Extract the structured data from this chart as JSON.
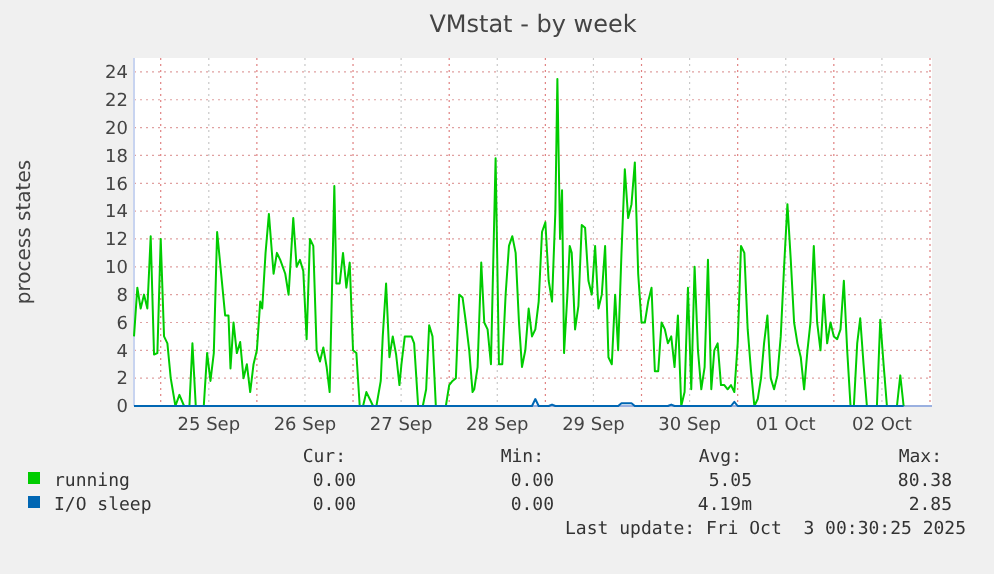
{
  "chart_data": {
    "type": "line",
    "title": "VMstat - by week",
    "ylabel": "process states",
    "xlim": [
      "2025-09-24T17:20",
      "2025-10-03T00:30"
    ],
    "xticks": [
      {
        "value": "2025-09-25T00:00",
        "label": null
      },
      {
        "value": "2025-09-25T12:00",
        "label": "25 Sep"
      },
      {
        "value": "2025-09-26T00:00",
        "label": null
      },
      {
        "value": "2025-09-26T12:00",
        "label": "26 Sep"
      },
      {
        "value": "2025-09-27T00:00",
        "label": null
      },
      {
        "value": "2025-09-27T12:00",
        "label": "27 Sep"
      },
      {
        "value": "2025-09-28T00:00",
        "label": null
      },
      {
        "value": "2025-09-28T12:00",
        "label": "28 Sep"
      },
      {
        "value": "2025-09-29T00:00",
        "label": null
      },
      {
        "value": "2025-09-29T12:00",
        "label": "29 Sep"
      },
      {
        "value": "2025-09-30T00:00",
        "label": null
      },
      {
        "value": "2025-09-30T12:00",
        "label": "30 Sep"
      },
      {
        "value": "2025-10-01T00:00",
        "label": null
      },
      {
        "value": "2025-10-01T12:00",
        "label": "01 Oct"
      },
      {
        "value": "2025-10-02T00:00",
        "label": null
      },
      {
        "value": "2025-10-02T12:00",
        "label": "02 Oct"
      },
      {
        "value": "2025-10-03T00:00",
        "label": null
      }
    ],
    "ylim": [
      0,
      25
    ],
    "yticks": [
      0,
      2,
      4,
      6,
      8,
      10,
      12,
      14,
      16,
      18,
      20,
      22,
      24
    ],
    "grid": true,
    "legend": "bottom",
    "series": [
      {
        "name": "running",
        "color": "#00cc00",
        "x": [
          "2025-09-24T17:20",
          "2025-09-24T18:10",
          "2025-09-24T19:00",
          "2025-09-24T19:50",
          "2025-09-24T20:40",
          "2025-09-24T21:30",
          "2025-09-24T22:20",
          "2025-09-24T23:10",
          "2025-09-25T00:00",
          "2025-09-25T00:50",
          "2025-09-25T01:40",
          "2025-09-25T02:30",
          "2025-09-25T03:40",
          "2025-09-25T04:40",
          "2025-09-25T05:50",
          "2025-09-25T07:10",
          "2025-09-25T07:55",
          "2025-09-25T08:45",
          "2025-09-25T10:45",
          "2025-09-25T11:35",
          "2025-09-25T12:25",
          "2025-09-25T13:15",
          "2025-09-25T14:05",
          "2025-09-25T15:15",
          "2025-09-25T16:05",
          "2025-09-25T16:55",
          "2025-09-25T17:25",
          "2025-09-25T18:10",
          "2025-09-25T19:00",
          "2025-09-25T19:50",
          "2025-09-25T20:40",
          "2025-09-25T21:30",
          "2025-09-25T22:20",
          "2025-09-25T23:10",
          "2025-09-26T00:00",
          "2025-09-26T00:50",
          "2025-09-26T01:20",
          "2025-09-26T02:10",
          "2025-09-26T03:00",
          "2025-09-26T04:10",
          "2025-09-26T05:00",
          "2025-09-26T05:50",
          "2025-09-26T07:05",
          "2025-09-26T07:55",
          "2025-09-26T09:05",
          "2025-09-26T09:55",
          "2025-09-26T10:45",
          "2025-09-26T11:35",
          "2025-09-26T12:25",
          "2025-09-26T13:15",
          "2025-09-26T14:05",
          "2025-09-26T14:55",
          "2025-09-26T15:45",
          "2025-09-26T16:35",
          "2025-09-26T17:25",
          "2025-09-26T18:10",
          "2025-09-26T19:20",
          "2025-09-26T19:50",
          "2025-09-26T20:40",
          "2025-09-26T21:30",
          "2025-09-26T22:20",
          "2025-09-26T23:10",
          "2025-09-27T00:00",
          "2025-09-27T00:50",
          "2025-09-27T01:40",
          "2025-09-27T02:30",
          "2025-09-27T03:20",
          "2025-09-27T04:10",
          "2025-09-27T05:00",
          "2025-09-27T05:50",
          "2025-09-27T06:55",
          "2025-09-27T07:25",
          "2025-09-27T08:15",
          "2025-09-27T09:05",
          "2025-09-27T09:55",
          "2025-09-27T10:45",
          "2025-09-27T11:35",
          "2025-09-27T12:05",
          "2025-09-27T12:55",
          "2025-09-27T14:35",
          "2025-09-27T15:15",
          "2025-09-27T16:15",
          "2025-09-27T17:25",
          "2025-09-27T18:15",
          "2025-09-27T19:00",
          "2025-09-27T19:50",
          "2025-09-27T20:40",
          "2025-09-27T22:20",
          "2025-09-27T23:10",
          "2025-09-28T00:00",
          "2025-09-28T00:50",
          "2025-09-28T01:40",
          "2025-09-28T02:30",
          "2025-09-28T03:20",
          "2025-09-28T04:10",
          "2025-09-28T05:00",
          "2025-09-28T05:50",
          "2025-09-28T06:15",
          "2025-09-28T07:05",
          "2025-09-28T08:00",
          "2025-09-28T08:45",
          "2025-09-28T09:35",
          "2025-09-28T10:25",
          "2025-09-28T11:35",
          "2025-09-28T12:25",
          "2025-09-28T13:15",
          "2025-09-28T14:05",
          "2025-09-28T14:55",
          "2025-09-28T15:45",
          "2025-09-28T16:35",
          "2025-09-28T17:25",
          "2025-09-28T18:10",
          "2025-09-28T19:00",
          "2025-09-28T19:50",
          "2025-09-28T20:40",
          "2025-09-28T21:30",
          "2025-09-28T22:20",
          "2025-09-28T23:10",
          "2025-09-29T00:00",
          "2025-09-29T00:50",
          "2025-09-29T01:40",
          "2025-09-29T02:30",
          "2025-09-29T03:00",
          "2025-09-29T03:40",
          "2025-09-29T04:10",
          "2025-09-29T04:40",
          "2025-09-29T05:30",
          "2025-09-29T06:05",
          "2025-09-29T06:35",
          "2025-09-29T07:25",
          "2025-09-29T08:15",
          "2025-09-29T09:05",
          "2025-09-29T09:55",
          "2025-09-29T10:45",
          "2025-09-29T11:35",
          "2025-09-29T12:25",
          "2025-09-29T13:15",
          "2025-09-29T14:05",
          "2025-09-29T14:55",
          "2025-09-29T15:45",
          "2025-09-29T16:35",
          "2025-09-29T17:25",
          "2025-09-29T18:10",
          "2025-09-29T19:00",
          "2025-09-29T19:50",
          "2025-09-29T20:40",
          "2025-09-29T21:30",
          "2025-09-29T22:20",
          "2025-09-29T23:10",
          "2025-09-30T00:00",
          "2025-09-30T00:50",
          "2025-09-30T01:40",
          "2025-09-30T02:30",
          "2025-09-30T03:20",
          "2025-09-30T04:10",
          "2025-09-30T05:00",
          "2025-09-30T05:50",
          "2025-09-30T06:35",
          "2025-09-30T07:25",
          "2025-09-30T08:15",
          "2025-09-30T09:05",
          "2025-09-30T09:55",
          "2025-09-30T10:45",
          "2025-09-30T11:35",
          "2025-09-30T12:25",
          "2025-09-30T13:15",
          "2025-09-30T14:05",
          "2025-09-30T14:55",
          "2025-09-30T15:45",
          "2025-09-30T16:35",
          "2025-09-30T17:25",
          "2025-09-30T18:10",
          "2025-09-30T19:00",
          "2025-09-30T19:50",
          "2025-09-30T20:40",
          "2025-09-30T21:30",
          "2025-09-30T22:20",
          "2025-09-30T23:10",
          "2025-10-01T00:00",
          "2025-10-01T00:50",
          "2025-10-01T01:40",
          "2025-10-01T02:30",
          "2025-10-01T03:20",
          "2025-10-01T04:10",
          "2025-10-01T05:00",
          "2025-10-01T05:50",
          "2025-10-01T06:35",
          "2025-10-01T07:25",
          "2025-10-01T08:15",
          "2025-10-01T09:05",
          "2025-10-01T09:55",
          "2025-10-01T10:45",
          "2025-10-01T11:35",
          "2025-10-01T12:25",
          "2025-10-01T13:15",
          "2025-10-01T14:05",
          "2025-10-01T14:55",
          "2025-10-01T15:45",
          "2025-10-01T16:35",
          "2025-10-01T17:25",
          "2025-10-01T18:10",
          "2025-10-01T19:00",
          "2025-10-01T19:50",
          "2025-10-01T20:40",
          "2025-10-01T21:30",
          "2025-10-01T22:20",
          "2025-10-01T23:10",
          "2025-10-02T00:00",
          "2025-10-02T00:50",
          "2025-10-02T01:40",
          "2025-10-02T02:30",
          "2025-10-02T03:20",
          "2025-10-02T04:10",
          "2025-10-02T05:00",
          "2025-10-02T05:50",
          "2025-10-02T06:35",
          "2025-10-02T07:25",
          "2025-10-02T08:15",
          "2025-10-02T10:45",
          "2025-10-02T11:35",
          "2025-10-02T12:25",
          "2025-10-02T13:15",
          "2025-10-02T15:45",
          "2025-10-02T16:35",
          "2025-10-02T17:25"
        ],
        "values": [
          5,
          8.5,
          7,
          8,
          7,
          12.2,
          3.7,
          3.8,
          12,
          5,
          4.5,
          2,
          0,
          0.8,
          0,
          0,
          4.5,
          0,
          0,
          3.8,
          1.8,
          3.8,
          12.5,
          9,
          6.5,
          6.5,
          2.7,
          6,
          3.8,
          4.6,
          2,
          3,
          1,
          3,
          4,
          7.5,
          7,
          11,
          13.8,
          9.5,
          11,
          10.5,
          9.5,
          8,
          13.5,
          10,
          10.5,
          9.7,
          4.8,
          12,
          11.5,
          4,
          3.2,
          4.2,
          2.8,
          1,
          15.8,
          8.8,
          8.8,
          11,
          8.5,
          10.3,
          4,
          3.8,
          0,
          0,
          1,
          0.5,
          0,
          0,
          1.8,
          5,
          8.8,
          3.5,
          5,
          3.7,
          1.5,
          3,
          5,
          5,
          4.5,
          0,
          0,
          1.2,
          5.8,
          5,
          0,
          0,
          0,
          1.5,
          1.8,
          2,
          8,
          7.8,
          6,
          4,
          1,
          1.2,
          2.8,
          10.3,
          6,
          5.5,
          3,
          17.8,
          3,
          3,
          8,
          11.5,
          12.2,
          11,
          6,
          2.8,
          4,
          7,
          5,
          5.5,
          7.5,
          12.5,
          13.2,
          9,
          7.5,
          14,
          23.5,
          12,
          15.5,
          3.8,
          8,
          11.5,
          11,
          5.5,
          7.2,
          13,
          12.8,
          9,
          8,
          11.5,
          7,
          8,
          11.5,
          3.5,
          3,
          8,
          4,
          11,
          17,
          13.5,
          14.5,
          17.5,
          9.5,
          6,
          6,
          7.5,
          8.5,
          2.5,
          2.5,
          6,
          5.5,
          4.5,
          5,
          2.8,
          6.5,
          0,
          1,
          8.5,
          1.2,
          10,
          4,
          1.2,
          2.8,
          10.5,
          1.2,
          4,
          4.5,
          1.5,
          1.5,
          1.2,
          1.5,
          1,
          4.5,
          11.5,
          11,
          5.5,
          2.5,
          0,
          0.5,
          2,
          4.5,
          6.5,
          2,
          1.2,
          2.2,
          5,
          10,
          14.5,
          10.5,
          6,
          4.5,
          3.5,
          1.2,
          4,
          6,
          11.5,
          6,
          4,
          8,
          4.5,
          6,
          5,
          4.8,
          5.5,
          9,
          4,
          0,
          0,
          4.5,
          6.3,
          3,
          0,
          0,
          6.2,
          3,
          0,
          0,
          2.2,
          0
        ]
      },
      {
        "name": "I/O sleep",
        "color": "#0066b3",
        "x": [
          "2025-09-24T17:20",
          "2025-09-28T20:40",
          "2025-09-28T21:30",
          "2025-09-28T22:20",
          "2025-09-29T00:50",
          "2025-09-29T01:40",
          "2025-09-29T02:30",
          "2025-09-29T18:10",
          "2025-09-29T19:00",
          "2025-09-29T21:30",
          "2025-09-29T22:20",
          "2025-09-30T06:35",
          "2025-09-30T07:25",
          "2025-09-30T08:15",
          "2025-09-30T22:20",
          "2025-09-30T23:10",
          "2025-10-01T00:00",
          "2025-10-02T17:25"
        ],
        "values": [
          0,
          0,
          0.5,
          0,
          0,
          0.1,
          0,
          0,
          0.2,
          0.2,
          0,
          0,
          0.1,
          0,
          0,
          0.3,
          0,
          0
        ]
      }
    ],
    "annotations": [
      "Cur:",
      "Min:",
      "Avg:",
      "Max:",
      "0.00",
      "0.00",
      "5.05",
      "80.38",
      "0.00",
      "0.00",
      "4.19m",
      "2.85",
      "Last update: Fri Oct  3 00:30:25 2025"
    ]
  }
}
